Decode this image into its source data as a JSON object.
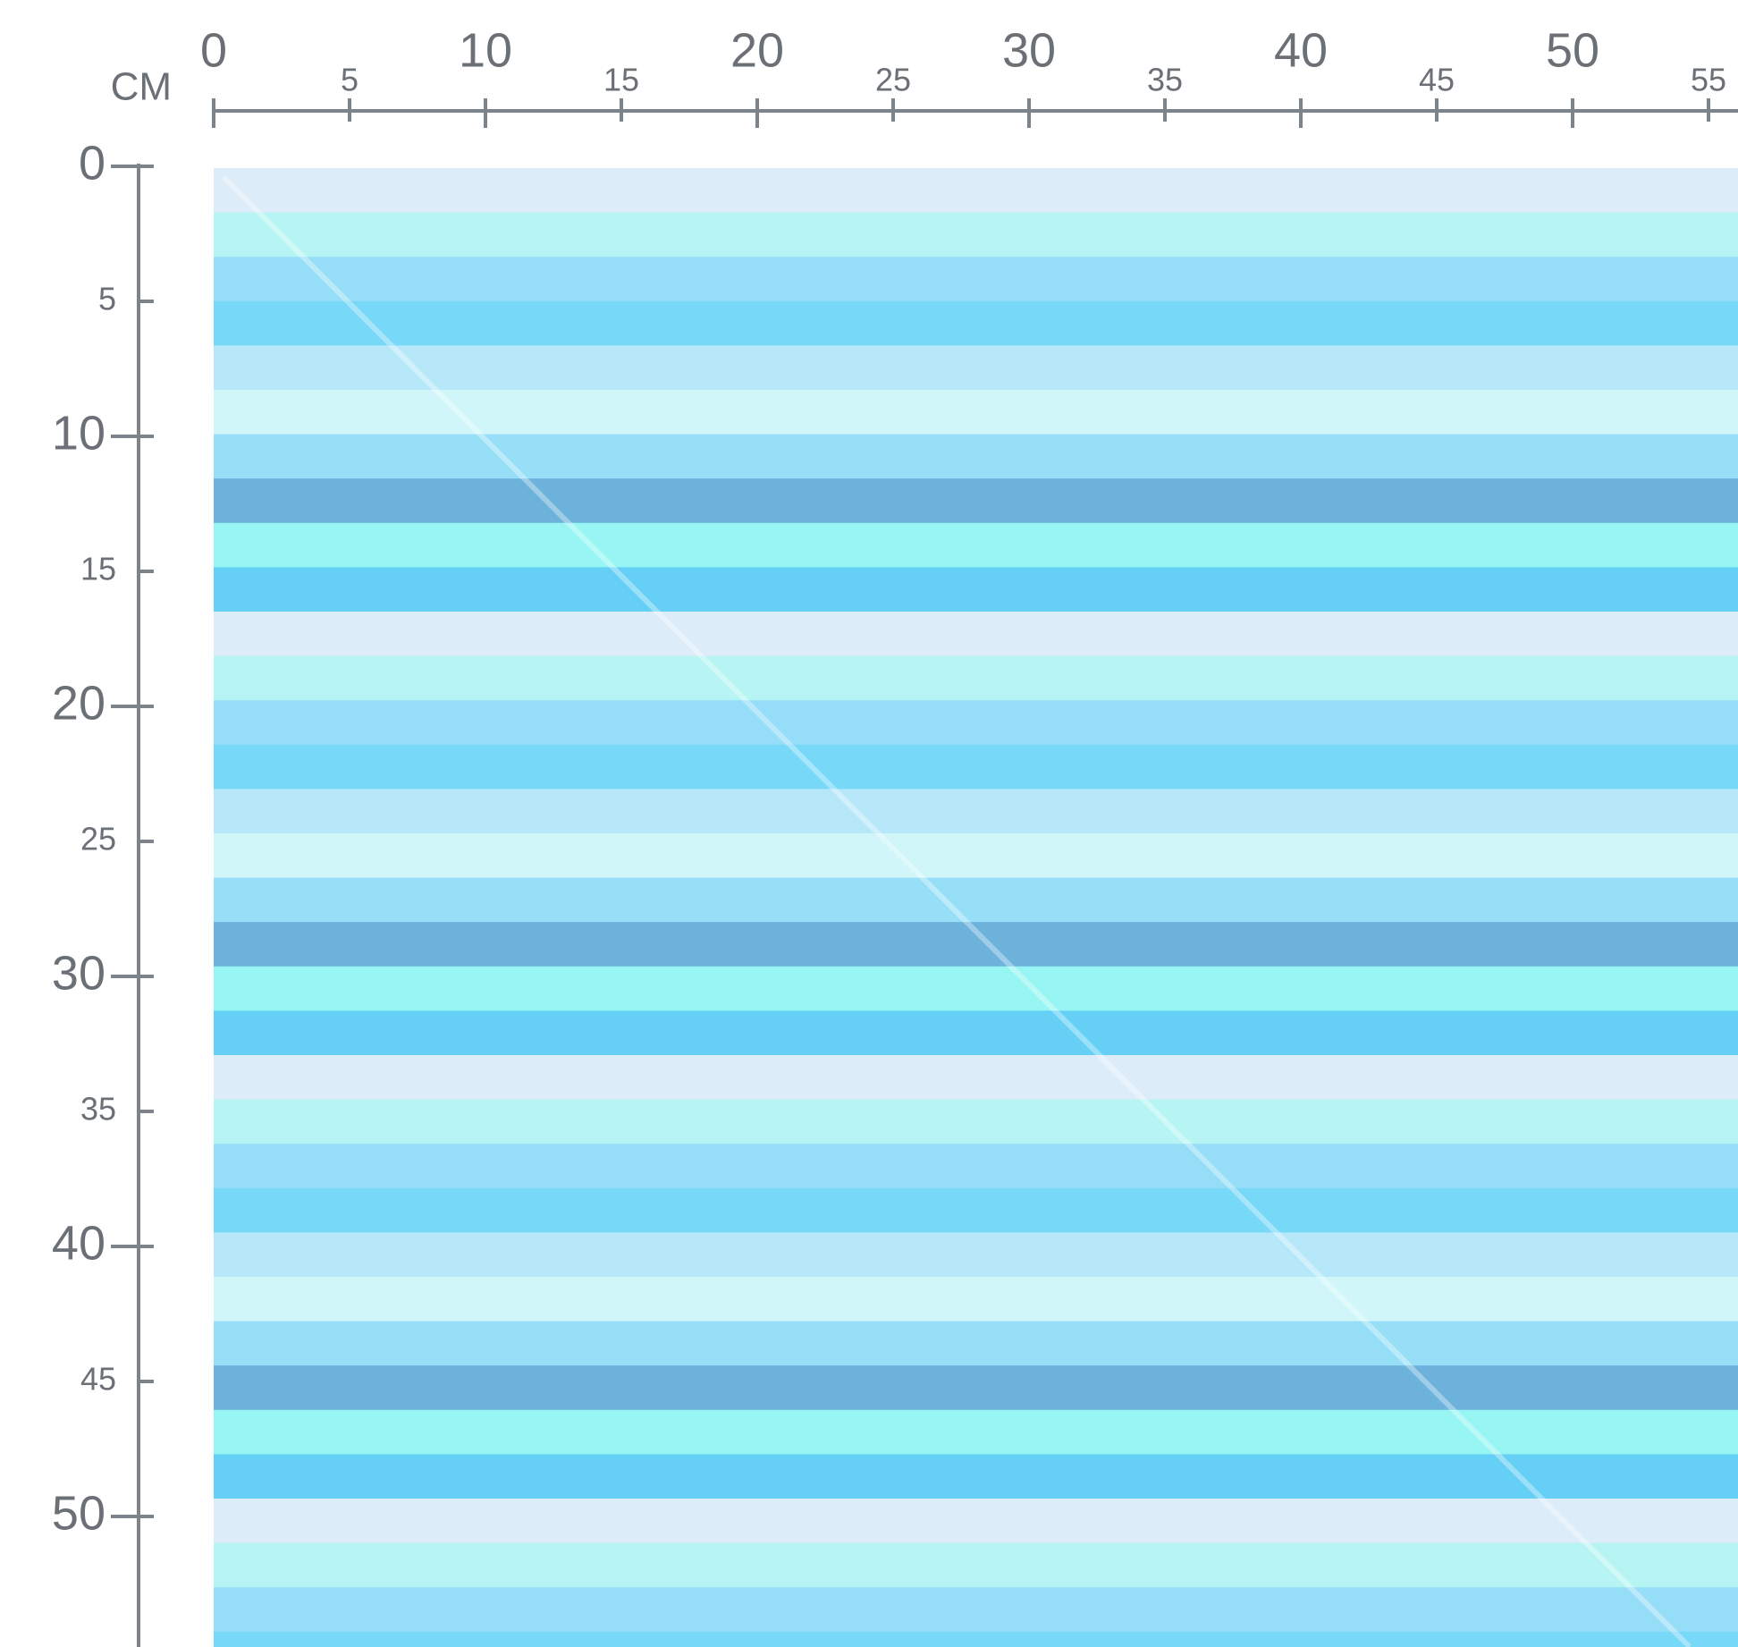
{
  "ruler": {
    "unit": "CM",
    "top_ticks": [
      0,
      5,
      10,
      15,
      20,
      25,
      30,
      35,
      40,
      45,
      50,
      55
    ],
    "left_ticks": [
      0,
      5,
      10,
      15,
      20,
      25,
      30,
      35,
      40,
      45,
      50
    ]
  }
}
